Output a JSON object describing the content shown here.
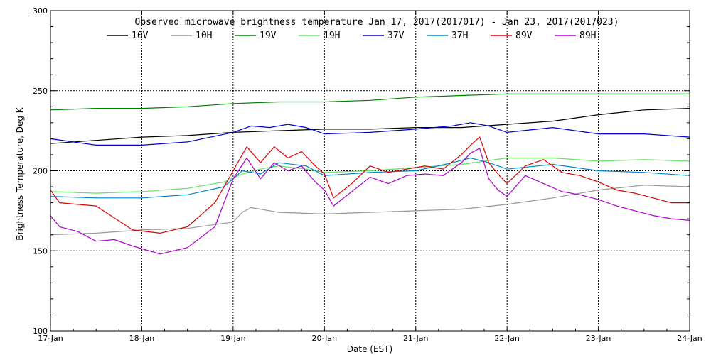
{
  "chart_data": {
    "type": "line",
    "title": "Observed microwave brightness temperature Jan 17, 2017(2017017) - Jan 23, 2017(2017023)",
    "xlabel": "Date (EST)",
    "ylabel": "Brightness Temperature, Deg K",
    "xlim": [
      0,
      7
    ],
    "ylim": [
      100,
      300
    ],
    "x_tick_labels": [
      "17-Jan",
      "18-Jan",
      "19-Jan",
      "20-Jan",
      "21-Jan",
      "22-Jan",
      "23-Jan",
      "24-Jan"
    ],
    "y_ticks": [
      100,
      150,
      200,
      250,
      300
    ],
    "grid": true,
    "legend_position": "top",
    "series": [
      {
        "name": "10V",
        "color": "#000000",
        "x": [
          0,
          0.5,
          1,
          1.5,
          2,
          2.5,
          3,
          3.5,
          4,
          4.5,
          5,
          5.5,
          6,
          6.5,
          7
        ],
        "y": [
          217,
          219,
          221,
          222,
          224,
          225,
          226,
          226,
          227,
          227,
          229,
          231,
          235,
          238,
          239
        ]
      },
      {
        "name": "10H",
        "color": "#999999",
        "x": [
          0,
          0.5,
          1,
          1.5,
          2,
          2.1,
          2.2,
          2.5,
          3,
          3.5,
          4,
          4.5,
          5,
          5.5,
          6,
          6.5,
          7
        ],
        "y": [
          160,
          161,
          163,
          164,
          168,
          174,
          177,
          174,
          173,
          174,
          175,
          176,
          179,
          183,
          188,
          191,
          190
        ]
      },
      {
        "name": "19V",
        "color": "#008000",
        "x": [
          0,
          0.5,
          1,
          1.5,
          2,
          2.5,
          3,
          3.5,
          4,
          4.5,
          5,
          5.5,
          6,
          6.5,
          7
        ],
        "y": [
          238,
          239,
          239,
          240,
          242,
          243,
          243,
          244,
          246,
          247,
          248,
          248,
          248,
          248,
          248
        ]
      },
      {
        "name": "19H",
        "color": "#66e066",
        "x": [
          0,
          0.5,
          1,
          1.5,
          1.9,
          2.1,
          2.3,
          2.5,
          2.8,
          3,
          3.5,
          4,
          4.5,
          5,
          5.5,
          6,
          6.5,
          7
        ],
        "y": [
          187,
          186,
          187,
          189,
          193,
          198,
          201,
          203,
          201,
          199,
          200,
          202,
          204,
          208,
          208,
          206,
          207,
          206
        ]
      },
      {
        "name": "37V",
        "color": "#0000cc",
        "x": [
          0,
          0.5,
          1,
          1.5,
          2,
          2.2,
          2.4,
          2.6,
          2.8,
          3,
          3.5,
          4,
          4.4,
          4.6,
          4.8,
          5,
          5.5,
          6,
          6.5,
          7
        ],
        "y": [
          220,
          216,
          216,
          218,
          224,
          228,
          227,
          229,
          227,
          223,
          224,
          226,
          228,
          230,
          228,
          224,
          227,
          223,
          223,
          221
        ]
      },
      {
        "name": "37H",
        "color": "#0088cc",
        "x": [
          0,
          0.5,
          1,
          1.5,
          1.9,
          2.1,
          2.3,
          2.5,
          2.8,
          3,
          3.5,
          4,
          4.4,
          4.6,
          4.8,
          5,
          5.5,
          6,
          6.5,
          7
        ],
        "y": [
          184,
          183,
          183,
          185,
          190,
          200,
          198,
          205,
          203,
          197,
          199,
          200,
          205,
          208,
          205,
          201,
          204,
          200,
          199,
          197
        ]
      },
      {
        "name": "89V",
        "color": "#e00000",
        "x": [
          0,
          0.1,
          0.5,
          0.9,
          1.2,
          1.5,
          1.8,
          2,
          2.15,
          2.3,
          2.45,
          2.6,
          2.75,
          2.9,
          3,
          3.1,
          3.3,
          3.5,
          3.7,
          3.9,
          4.1,
          4.3,
          4.5,
          4.6,
          4.7,
          4.8,
          4.9,
          5,
          5.2,
          5.4,
          5.6,
          5.8,
          6,
          6.2,
          6.4,
          6.6,
          6.8,
          7
        ],
        "y": [
          188,
          180,
          178,
          163,
          161,
          165,
          180,
          200,
          215,
          205,
          215,
          208,
          212,
          203,
          198,
          183,
          192,
          203,
          199,
          201,
          203,
          201,
          210,
          216,
          221,
          205,
          198,
          192,
          203,
          207,
          199,
          197,
          193,
          188,
          186,
          183,
          180,
          180
        ]
      },
      {
        "name": "89H",
        "color": "#b000d0",
        "x": [
          0,
          0.1,
          0.3,
          0.5,
          0.7,
          0.9,
          1.2,
          1.5,
          1.8,
          2,
          2.15,
          2.3,
          2.45,
          2.6,
          2.75,
          2.9,
          3,
          3.1,
          3.3,
          3.5,
          3.7,
          3.9,
          4.1,
          4.3,
          4.5,
          4.6,
          4.7,
          4.8,
          4.9,
          5,
          5.2,
          5.4,
          5.6,
          5.8,
          6,
          6.2,
          6.4,
          6.6,
          6.8,
          7
        ],
        "y": [
          172,
          165,
          162,
          156,
          157,
          153,
          148,
          152,
          165,
          195,
          208,
          195,
          205,
          200,
          203,
          193,
          188,
          178,
          187,
          196,
          192,
          197,
          198,
          197,
          205,
          211,
          214,
          195,
          188,
          184,
          197,
          192,
          187,
          185,
          182,
          178,
          175,
          172,
          170,
          169
        ]
      }
    ]
  }
}
